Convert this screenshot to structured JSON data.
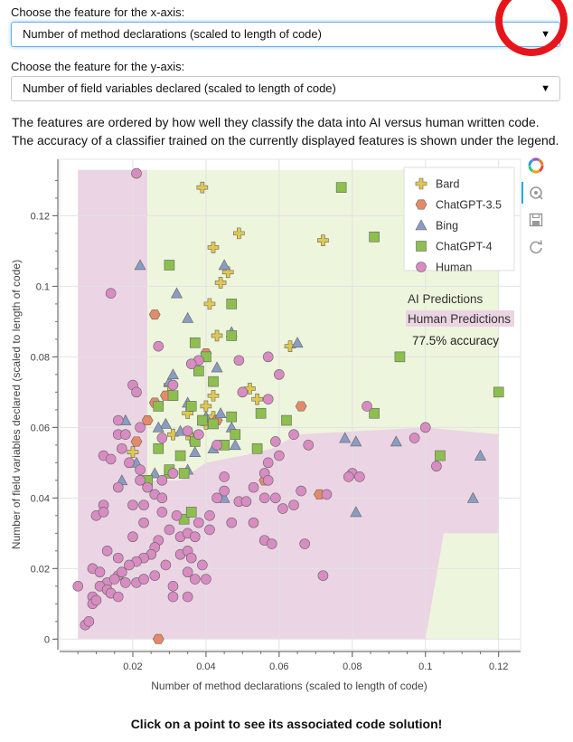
{
  "controls": {
    "x_label": "Choose the feature for the x-axis:",
    "x_value": "Number of method declarations (scaled to length of code)",
    "y_label": "Choose the feature for the y-axis:",
    "y_value": "Number of field variables declared (scaled to length of code)"
  },
  "description": {
    "line1": "The features are ordered by how well they classify the data into AI versus human written code.",
    "line2": "The accuracy of a classifier trained on the currently displayed features is shown under the legend."
  },
  "footer": "Click on a point to see its associated code solution!",
  "colors": {
    "bard": "#e0c850",
    "chatgpt35": "#e58a68",
    "bing": "#8a9cc2",
    "chatgpt4": "#8cbf4e",
    "human": "#d88cc2",
    "ai_region": "#eef5dd",
    "human_region": "#ebd4e3"
  },
  "chart_data": {
    "type": "scatter",
    "xlabel": "Number of method declarations (scaled to length of code)",
    "ylabel": "Number of field variables declared (scaled to length of code)",
    "xlim": [
      0,
      0.126
    ],
    "ylim": [
      -0.003,
      0.136
    ],
    "xticks": [
      "0.02",
      "0.04",
      "0.06",
      "0.08",
      "0.1",
      "0.12"
    ],
    "yticks": [
      "0",
      "0.02",
      "0.04",
      "0.06",
      "0.08",
      "0.1",
      "0.12"
    ],
    "grid": true,
    "legend_position": "top-right",
    "region_labels": {
      "ai": "AI Predictions",
      "human": "Human Predictions"
    },
    "accuracy_text": "77.5% accuracy",
    "series": [
      {
        "name": "Bard",
        "marker": "plus",
        "points": [
          [
            0.039,
            0.128
          ],
          [
            0.042,
            0.111
          ],
          [
            0.049,
            0.115
          ],
          [
            0.072,
            0.113
          ],
          [
            0.046,
            0.104
          ],
          [
            0.044,
            0.101
          ],
          [
            0.041,
            0.095
          ],
          [
            0.043,
            0.086
          ],
          [
            0.063,
            0.083
          ],
          [
            0.03,
            0.072
          ],
          [
            0.052,
            0.071
          ],
          [
            0.042,
            0.069
          ],
          [
            0.054,
            0.068
          ],
          [
            0.04,
            0.066
          ],
          [
            0.035,
            0.064
          ],
          [
            0.04,
            0.061
          ],
          [
            0.042,
            0.063
          ],
          [
            0.02,
            0.053
          ],
          [
            0.036,
            0.057
          ],
          [
            0.031,
            0.058
          ]
        ]
      },
      {
        "name": "ChatGPT-3.5",
        "marker": "hex",
        "points": [
          [
            0.026,
            0.092
          ],
          [
            0.066,
            0.066
          ],
          [
            0.04,
            0.081
          ],
          [
            0.029,
            0.069
          ],
          [
            0.043,
            0.062
          ],
          [
            0.024,
            0.062
          ],
          [
            0.021,
            0.056
          ],
          [
            0.056,
            0.045
          ],
          [
            0.071,
            0.041
          ],
          [
            0.027,
            0.0
          ],
          [
            0.026,
            0.067
          ]
        ]
      },
      {
        "name": "Bing",
        "marker": "triangle",
        "points": [
          [
            0.022,
            0.106
          ],
          [
            0.045,
            0.106
          ],
          [
            0.032,
            0.098
          ],
          [
            0.035,
            0.091
          ],
          [
            0.047,
            0.087
          ],
          [
            0.065,
            0.084
          ],
          [
            0.03,
            0.073
          ],
          [
            0.031,
            0.075
          ],
          [
            0.035,
            0.067
          ],
          [
            0.044,
            0.064
          ],
          [
            0.043,
            0.077
          ],
          [
            0.04,
            0.063
          ],
          [
            0.029,
            0.061
          ],
          [
            0.033,
            0.059
          ],
          [
            0.047,
            0.06
          ],
          [
            0.042,
            0.054
          ],
          [
            0.048,
            0.055
          ],
          [
            0.018,
            0.062
          ],
          [
            0.027,
            0.06
          ],
          [
            0.037,
            0.053
          ],
          [
            0.021,
            0.05
          ],
          [
            0.026,
            0.047
          ],
          [
            0.035,
            0.048
          ],
          [
            0.045,
            0.04
          ],
          [
            0.078,
            0.057
          ],
          [
            0.081,
            0.056
          ],
          [
            0.092,
            0.056
          ],
          [
            0.115,
            0.052
          ],
          [
            0.113,
            0.04
          ],
          [
            0.081,
            0.036
          ],
          [
            0.017,
            0.045
          ]
        ]
      },
      {
        "name": "ChatGPT-4",
        "marker": "square",
        "points": [
          [
            0.077,
            0.128
          ],
          [
            0.086,
            0.114
          ],
          [
            0.03,
            0.106
          ],
          [
            0.047,
            0.095
          ],
          [
            0.047,
            0.086
          ],
          [
            0.037,
            0.084
          ],
          [
            0.04,
            0.08
          ],
          [
            0.093,
            0.08
          ],
          [
            0.038,
            0.076
          ],
          [
            0.042,
            0.073
          ],
          [
            0.031,
            0.069
          ],
          [
            0.036,
            0.066
          ],
          [
            0.027,
            0.066
          ],
          [
            0.047,
            0.063
          ],
          [
            0.055,
            0.064
          ],
          [
            0.062,
            0.062
          ],
          [
            0.039,
            0.062
          ],
          [
            0.042,
            0.061
          ],
          [
            0.037,
            0.056
          ],
          [
            0.048,
            0.058
          ],
          [
            0.045,
            0.055
          ],
          [
            0.054,
            0.054
          ],
          [
            0.086,
            0.064
          ],
          [
            0.12,
            0.07
          ],
          [
            0.104,
            0.052
          ],
          [
            0.027,
            0.054
          ],
          [
            0.033,
            0.052
          ],
          [
            0.03,
            0.047
          ],
          [
            0.034,
            0.047
          ],
          [
            0.034,
            0.034
          ],
          [
            0.036,
            0.036
          ],
          [
            0.024,
            0.045
          ],
          [
            0.03,
            0.048
          ]
        ]
      },
      {
        "name": "Human",
        "marker": "circle",
        "points": [
          [
            0.021,
            0.132
          ],
          [
            0.014,
            0.098
          ],
          [
            0.027,
            0.083
          ],
          [
            0.038,
            0.079
          ],
          [
            0.049,
            0.079
          ],
          [
            0.036,
            0.078
          ],
          [
            0.057,
            0.08
          ],
          [
            0.06,
            0.075
          ],
          [
            0.05,
            0.07
          ],
          [
            0.057,
            0.068
          ],
          [
            0.02,
            0.072
          ],
          [
            0.021,
            0.07
          ],
          [
            0.031,
            0.072
          ],
          [
            0.022,
            0.06
          ],
          [
            0.028,
            0.057
          ],
          [
            0.035,
            0.059
          ],
          [
            0.038,
            0.058
          ],
          [
            0.043,
            0.055
          ],
          [
            0.017,
            0.054
          ],
          [
            0.012,
            0.052
          ],
          [
            0.014,
            0.051
          ],
          [
            0.019,
            0.05
          ],
          [
            0.022,
            0.045
          ],
          [
            0.016,
            0.058
          ],
          [
            0.016,
            0.062
          ],
          [
            0.064,
            0.058
          ],
          [
            0.068,
            0.055
          ],
          [
            0.059,
            0.056
          ],
          [
            0.06,
            0.052
          ],
          [
            0.057,
            0.05
          ],
          [
            0.056,
            0.047
          ],
          [
            0.057,
            0.045
          ],
          [
            0.053,
            0.043
          ],
          [
            0.045,
            0.042
          ],
          [
            0.049,
            0.039
          ],
          [
            0.045,
            0.046
          ],
          [
            0.031,
            0.047
          ],
          [
            0.028,
            0.045
          ],
          [
            0.024,
            0.043
          ],
          [
            0.026,
            0.041
          ],
          [
            0.028,
            0.04
          ],
          [
            0.023,
            0.038
          ],
          [
            0.02,
            0.038
          ],
          [
            0.016,
            0.043
          ],
          [
            0.012,
            0.038
          ],
          [
            0.01,
            0.035
          ],
          [
            0.012,
            0.036
          ],
          [
            0.028,
            0.036
          ],
          [
            0.032,
            0.035
          ],
          [
            0.038,
            0.033
          ],
          [
            0.041,
            0.035
          ],
          [
            0.043,
            0.04
          ],
          [
            0.047,
            0.033
          ],
          [
            0.051,
            0.039
          ],
          [
            0.056,
            0.04
          ],
          [
            0.059,
            0.04
          ],
          [
            0.061,
            0.037
          ],
          [
            0.066,
            0.042
          ],
          [
            0.064,
            0.038
          ],
          [
            0.073,
            0.041
          ],
          [
            0.041,
            0.031
          ],
          [
            0.053,
            0.033
          ],
          [
            0.03,
            0.031
          ],
          [
            0.033,
            0.029
          ],
          [
            0.035,
            0.03
          ],
          [
            0.037,
            0.029
          ],
          [
            0.027,
            0.028
          ],
          [
            0.026,
            0.026
          ],
          [
            0.025,
            0.024
          ],
          [
            0.023,
            0.023
          ],
          [
            0.021,
            0.022
          ],
          [
            0.016,
            0.023
          ],
          [
            0.013,
            0.025
          ],
          [
            0.02,
            0.029
          ],
          [
            0.023,
            0.033
          ],
          [
            0.009,
            0.02
          ],
          [
            0.011,
            0.019
          ],
          [
            0.013,
            0.016
          ],
          [
            0.016,
            0.018
          ],
          [
            0.017,
            0.019
          ],
          [
            0.015,
            0.017
          ],
          [
            0.011,
            0.015
          ],
          [
            0.013,
            0.014
          ],
          [
            0.014,
            0.013
          ],
          [
            0.016,
            0.012
          ],
          [
            0.009,
            0.012
          ],
          [
            0.009,
            0.01
          ],
          [
            0.01,
            0.011
          ],
          [
            0.007,
            0.004
          ],
          [
            0.008,
            0.005
          ],
          [
            0.018,
            0.016
          ],
          [
            0.019,
            0.021
          ],
          [
            0.021,
            0.016
          ],
          [
            0.023,
            0.017
          ],
          [
            0.029,
            0.021
          ],
          [
            0.033,
            0.024
          ],
          [
            0.035,
            0.025
          ],
          [
            0.036,
            0.023
          ],
          [
            0.039,
            0.021
          ],
          [
            0.035,
            0.019
          ],
          [
            0.037,
            0.017
          ],
          [
            0.031,
            0.015
          ],
          [
            0.035,
            0.012
          ],
          [
            0.031,
            0.012
          ],
          [
            0.026,
            0.018
          ],
          [
            0.04,
            0.017
          ],
          [
            0.056,
            0.028
          ],
          [
            0.058,
            0.027
          ],
          [
            0.067,
            0.027
          ],
          [
            0.072,
            0.018
          ],
          [
            0.1,
            0.06
          ],
          [
            0.103,
            0.049
          ],
          [
            0.097,
            0.057
          ],
          [
            0.08,
            0.047
          ],
          [
            0.082,
            0.046
          ],
          [
            0.084,
            0.066
          ],
          [
            0.079,
            0.046
          ],
          [
            0.005,
            0.015
          ],
          [
            0.018,
            0.058
          ],
          [
            0.022,
            0.048
          ]
        ]
      }
    ]
  }
}
